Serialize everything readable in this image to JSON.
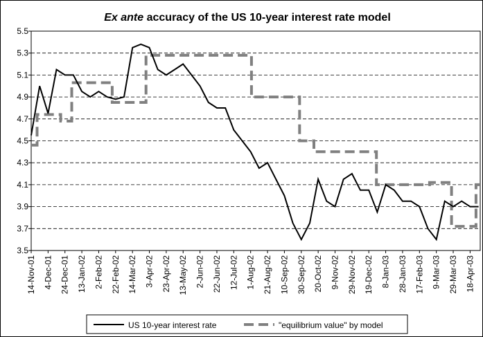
{
  "chart_data": {
    "type": "line",
    "title": [
      "Ex ante",
      "accuracy of the US 10-year interest rate model"
    ],
    "xlim": [
      "14-Nov-01",
      "30-Apr-03"
    ],
    "xticks": [
      "14-Nov-01",
      "4-Dec-01",
      "24-Dec-01",
      "13-Jan-02",
      "2-Feb-02",
      "22-Feb-02",
      "14-Mar-02",
      "3-Apr-02",
      "23-Apr-02",
      "13-May-02",
      "2-Jun-02",
      "22-Jun-02",
      "12-Jul-02",
      "1-Aug-02",
      "21-Aug-02",
      "10-Sep-02",
      "30-Sep-02",
      "20-Oct-02",
      "9-Nov-02",
      "29-Nov-02",
      "19-Dec-02",
      "8-Jan-03",
      "28-Jan-03",
      "17-Feb-03",
      "9-Mar-03",
      "29-Mar-03",
      "18-Apr-03"
    ],
    "ylim": [
      3.5,
      5.5
    ],
    "yticks": [
      3.5,
      3.7,
      3.9,
      4.1,
      4.3,
      4.5,
      4.7,
      4.9,
      5.1,
      5.3,
      5.5
    ],
    "grid": true,
    "series": [
      {
        "name": "US 10-year interest rate",
        "color": "#000000",
        "x": [
          "14-Nov-01",
          "24-Nov-01",
          "4-Dec-01",
          "14-Dec-01",
          "24-Dec-01",
          "3-Jan-02",
          "13-Jan-02",
          "23-Jan-02",
          "2-Feb-02",
          "12-Feb-02",
          "22-Feb-02",
          "4-Mar-02",
          "14-Mar-02",
          "24-Mar-02",
          "3-Apr-02",
          "13-Apr-02",
          "23-Apr-02",
          "3-May-02",
          "13-May-02",
          "23-May-02",
          "2-Jun-02",
          "12-Jun-02",
          "22-Jun-02",
          "2-Jul-02",
          "12-Jul-02",
          "22-Jul-02",
          "1-Aug-02",
          "11-Aug-02",
          "21-Aug-02",
          "31-Aug-02",
          "10-Sep-02",
          "20-Sep-02",
          "30-Sep-02",
          "10-Oct-02",
          "20-Oct-02",
          "30-Oct-02",
          "9-Nov-02",
          "19-Nov-02",
          "29-Nov-02",
          "9-Dec-02",
          "19-Dec-02",
          "29-Dec-02",
          "8-Jan-03",
          "18-Jan-03",
          "28-Jan-03",
          "7-Feb-03",
          "17-Feb-03",
          "27-Feb-03",
          "9-Mar-03",
          "19-Mar-03",
          "29-Mar-03",
          "8-Apr-03",
          "18-Apr-03",
          "28-Apr-03"
        ],
        "values": [
          4.55,
          5.0,
          4.75,
          5.15,
          5.1,
          5.1,
          4.95,
          4.9,
          4.95,
          4.9,
          4.88,
          4.9,
          5.35,
          5.38,
          5.35,
          5.15,
          5.1,
          5.15,
          5.2,
          5.1,
          5.0,
          4.85,
          4.8,
          4.8,
          4.6,
          4.5,
          4.4,
          4.25,
          4.3,
          4.15,
          4.0,
          3.75,
          3.6,
          3.75,
          4.15,
          3.95,
          3.9,
          4.15,
          4.2,
          4.05,
          4.05,
          3.85,
          4.1,
          4.05,
          3.95,
          3.95,
          3.9,
          3.7,
          3.6,
          3.95,
          3.9,
          3.95,
          3.9,
          3.9
        ]
      },
      {
        "name": "\"equilibrium value\" by model",
        "color": "#808080",
        "x": [
          "14-Nov-01",
          "21-Nov-01",
          "21-Nov-01",
          "19-Dec-01",
          "19-Dec-01",
          "1-Jan-02",
          "1-Jan-02",
          "18-Feb-02",
          "18-Feb-02",
          "30-Mar-02",
          "30-Mar-02",
          "2-Aug-02",
          "2-Aug-02",
          "28-Sep-02",
          "28-Sep-02",
          "15-Oct-02",
          "15-Oct-02",
          "28-Dec-02",
          "28-Dec-02",
          "1-Mar-03",
          "1-Mar-03",
          "27-Mar-03",
          "27-Mar-03",
          "25-Apr-03",
          "25-Apr-03",
          "30-Apr-03"
        ],
        "values": [
          4.46,
          4.46,
          4.74,
          4.74,
          4.68,
          4.68,
          5.03,
          5.03,
          4.85,
          4.85,
          5.28,
          5.28,
          4.9,
          4.9,
          4.5,
          4.5,
          4.4,
          4.4,
          4.1,
          4.1,
          4.12,
          4.12,
          3.72,
          3.72,
          4.1,
          4.1
        ]
      }
    ]
  }
}
